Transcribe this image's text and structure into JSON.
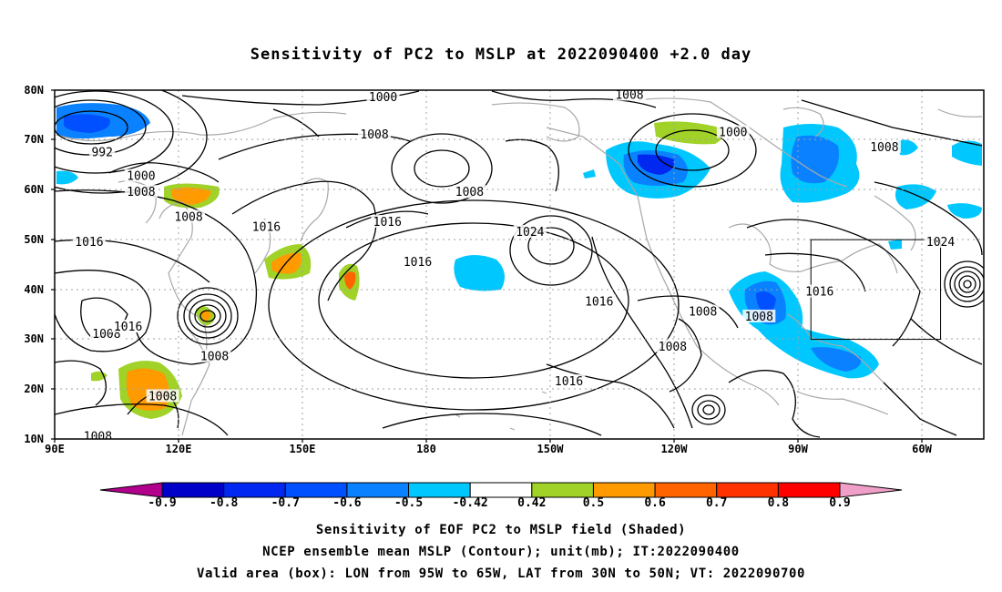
{
  "title": "Sensitivity of PC2 to MSLP at 2022090400 +2.0 day",
  "lat_labels": [
    "80N",
    "70N",
    "60N",
    "50N",
    "40N",
    "30N",
    "20N",
    "10N"
  ],
  "lon_labels": [
    "90E",
    "120E",
    "150E",
    "180",
    "150W",
    "120W",
    "90W",
    "60W"
  ],
  "contour_labels": [
    {
      "text": "1000",
      "lon": 110,
      "lat": 62.7
    },
    {
      "text": "1000",
      "lon": 166,
      "lat": 78.5
    },
    {
      "text": "1008",
      "lon": 164,
      "lat": 71
    },
    {
      "text": "992",
      "lon": 101,
      "lat": 67.5
    },
    {
      "text": "1008",
      "lon": 110,
      "lat": 59.5
    },
    {
      "text": "1008",
      "lon": 121,
      "lat": 54.5
    },
    {
      "text": "1016",
      "lon": 139,
      "lat": 52.5
    },
    {
      "text": "1016",
      "lon": 167,
      "lat": 53.5
    },
    {
      "text": "1008",
      "lon": 186,
      "lat": 59.5
    },
    {
      "text": "1008",
      "lon": 223,
      "lat": 79
    },
    {
      "text": "1000",
      "lon": 247,
      "lat": 71.5
    },
    {
      "text": "1008",
      "lon": 282,
      "lat": 68.5
    },
    {
      "text": "1016",
      "lon": 98,
      "lat": 49.5
    },
    {
      "text": "1016",
      "lon": 174,
      "lat": 45.5
    },
    {
      "text": "1024",
      "lon": 200,
      "lat": 51.5
    },
    {
      "text": "1016",
      "lon": 216,
      "lat": 37.5
    },
    {
      "text": "1016",
      "lon": 267,
      "lat": 39.5
    },
    {
      "text": "1024",
      "lon": 295,
      "lat": 49.5
    },
    {
      "text": "1008",
      "lon": 102,
      "lat": 31
    },
    {
      "text": "1016",
      "lon": 107,
      "lat": 32.5
    },
    {
      "text": "1008",
      "lon": 127,
      "lat": 26.5
    },
    {
      "text": "1008",
      "lon": 115,
      "lat": 18.5
    },
    {
      "text": "1008",
      "lon": 100,
      "lat": 10.5
    },
    {
      "text": "1008",
      "lon": 240,
      "lat": 35.5
    },
    {
      "text": "1008",
      "lon": 253,
      "lat": 34.5
    },
    {
      "text": "1008",
      "lon": 233,
      "lat": 28.5
    },
    {
      "text": "1016",
      "lon": 209,
      "lat": 21.5
    }
  ],
  "colorbar": {
    "labels": [
      "-0.9",
      "-0.8",
      "-0.7",
      "-0.6",
      "-0.5",
      "-0.42",
      "0.42",
      "0.5",
      "0.6",
      "0.7",
      "0.8",
      "0.9"
    ],
    "colors": [
      "#b0008c",
      "#0000c8",
      "#0028f0",
      "#0050ff",
      "#0a82ff",
      "#00c8ff",
      "#ffffff",
      "#a0d228",
      "#ff9b00",
      "#ff6400",
      "#ff3200",
      "#ff0000",
      "#f0a0c8"
    ]
  },
  "footer": [
    "Sensitivity of EOF PC2 to MSLP field (Shaded)",
    "NCEP ensemble mean MSLP (Contour); unit(mb); IT:2022090400",
    "Valid area (box): LON from 95W to 65W, LAT from 30N to 50N; VT: 2022090700"
  ],
  "valid_box": {
    "lon_min": 265,
    "lon_max": 295,
    "lat_min": 30,
    "lat_max": 50
  }
}
